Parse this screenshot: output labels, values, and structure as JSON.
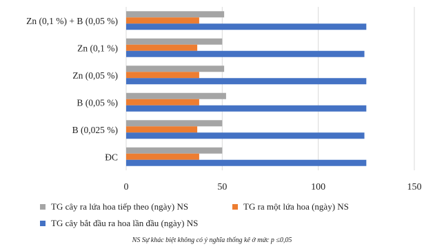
{
  "chart_data": {
    "type": "bar",
    "orientation": "horizontal",
    "categories": [
      "ĐC",
      "B (0,025 %)",
      "B (0,05 %)",
      "Zn (0,05 %)",
      "Zn (0,1 %)",
      "Zn (0,1 %) + B (0,05 %)"
    ],
    "series": [
      {
        "name": "TG cây ra lứa hoa tiếp theo (ngày) NS",
        "color": "#a5a5a5",
        "values": [
          50,
          50,
          52,
          51,
          50,
          51
        ]
      },
      {
        "name": "TG ra một lứa hoa (ngày) NS",
        "color": "#ed7d31",
        "values": [
          38,
          37,
          38,
          38,
          37,
          38
        ]
      },
      {
        "name": "TG cây bắt đầu ra hoa lần đầu (ngày) NS",
        "color": "#4472c4",
        "values": [
          125,
          124,
          125,
          125,
          124,
          125
        ]
      }
    ],
    "xlim": [
      0,
      150
    ],
    "xticks": [
      0,
      50,
      100,
      150
    ],
    "grid": true,
    "legend_position": "bottom",
    "title": "",
    "xlabel": "",
    "ylabel": ""
  },
  "legend": {
    "items": [
      {
        "label": "TG cây ra lứa hoa tiếp theo (ngày) NS",
        "color": "#a5a5a5"
      },
      {
        "label": "TG ra một lứa hoa (ngày) NS",
        "color": "#ed7d31"
      },
      {
        "label": "TG cây bắt đầu ra hoa lần đầu (ngày) NS",
        "color": "#4472c4"
      }
    ]
  },
  "footnote": "NS Sự khác biệt không có ý nghĩa thống kê ở mức p ≤0,05"
}
